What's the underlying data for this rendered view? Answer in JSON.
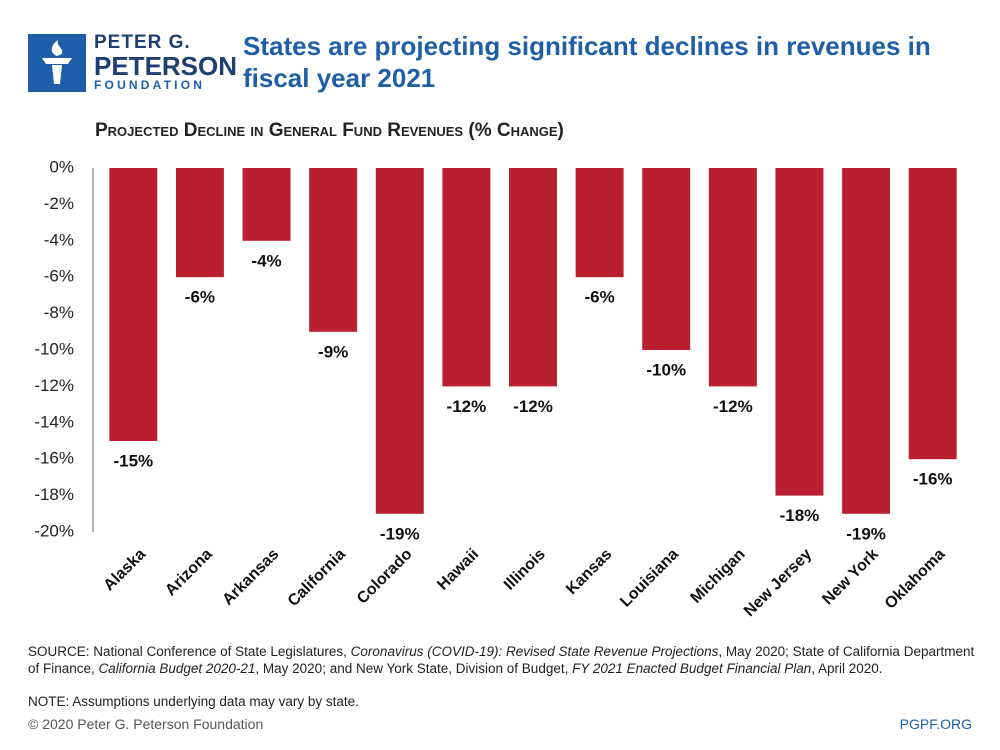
{
  "logo": {
    "line1": "PETER G.",
    "line2": "PETERSON",
    "line3": "FOUNDATION"
  },
  "chart_data": {
    "type": "bar",
    "title": "States are projecting significant declines in revenues in fiscal year 2021",
    "subtitle": "Projected Decline in General Fund Revenues (% Change)",
    "categories": [
      "Alaska",
      "Arizona",
      "Arkansas",
      "California",
      "Colorado",
      "Hawaii",
      "Illinois",
      "Kansas",
      "Louisiana",
      "Michigan",
      "New Jersey",
      "New York",
      "Oklahoma"
    ],
    "values": [
      -15,
      -6,
      -4,
      -9,
      -19,
      -12,
      -12,
      -6,
      -10,
      -12,
      -18,
      -19,
      -16
    ],
    "value_labels": [
      "-15%",
      "-6%",
      "-4%",
      "-9%",
      "-19%",
      "-12%",
      "-12%",
      "-6%",
      "-10%",
      "-12%",
      "-18%",
      "-19%",
      "-16%"
    ],
    "color": "#b91f2e",
    "ylim": [
      -20,
      0
    ],
    "yticks": [
      {
        "value": 0,
        "label": "0%"
      },
      {
        "value": -2,
        "label": "-2%"
      },
      {
        "value": -4,
        "label": "-4%"
      },
      {
        "value": -6,
        "label": "-6%"
      },
      {
        "value": -8,
        "label": "-8%"
      },
      {
        "value": -10,
        "label": "-10%"
      },
      {
        "value": -12,
        "label": "-12%"
      },
      {
        "value": -14,
        "label": "-14%"
      },
      {
        "value": -16,
        "label": "-16%"
      },
      {
        "value": -18,
        "label": "-18%"
      },
      {
        "value": -20,
        "label": "-20%"
      }
    ],
    "grid": false
  },
  "source": [
    "SOURCE: National Conference of State Legislatures, ",
    "Coronavirus (COVID-19): Revised State Revenue Projections",
    ", May 2020; State of California Department of Finance, ",
    "California Budget 2020-21",
    ", May 2020; and New York State, Division of Budget, ",
    "FY 2021 Enacted Budget Financial Plan",
    ", April 2020."
  ],
  "note": "NOTE: Assumptions underlying data may vary by state.",
  "footer": {
    "copyright": "© 2020 Peter G. Peterson Foundation",
    "site": "PGPF.ORG"
  }
}
